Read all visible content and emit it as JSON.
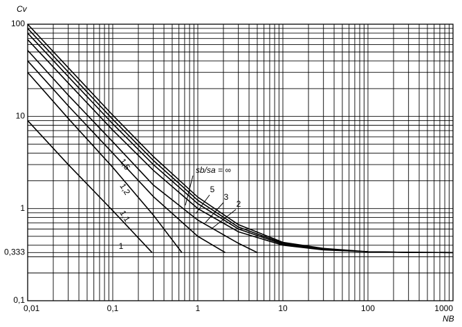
{
  "chart_data": {
    "type": "line",
    "x_label": "NB",
    "y_label": "Cv",
    "xlog": true,
    "ylog": true,
    "grid": true,
    "xlim": [
      0.01,
      1000
    ],
    "ylim": [
      0.1,
      100
    ],
    "xticks": [
      {
        "value": 0.01,
        "label": "0,01"
      },
      {
        "value": 0.1,
        "label": "0,1"
      },
      1,
      10,
      100,
      1000
    ],
    "yticks": [
      {
        "value": 0.1,
        "label": "0,1"
      },
      {
        "value": 0.333,
        "label": "0,333"
      },
      1,
      10,
      100
    ],
    "series": [
      {
        "name": "1",
        "color": "#000000",
        "x": [
          0.01,
          0.03,
          0.1,
          0.29
        ],
        "values": [
          9,
          3,
          0.95,
          0.333
        ]
      },
      {
        "name": "1,1",
        "color": "#000000",
        "x": [
          0.01,
          0.03,
          0.1,
          0.3,
          0.65
        ],
        "values": [
          30,
          9.5,
          2.8,
          0.85,
          0.333
        ]
      },
      {
        "name": "1,2",
        "color": "#000000",
        "x": [
          0.01,
          0.03,
          0.1,
          0.3,
          1,
          2.1
        ],
        "values": [
          40,
          13,
          4.0,
          1.35,
          0.5,
          0.333
        ]
      },
      {
        "name": "1,5",
        "color": "#000000",
        "x": [
          0.01,
          0.03,
          0.1,
          0.3,
          1,
          3,
          5
        ],
        "values": [
          52,
          17,
          5.3,
          1.8,
          0.75,
          0.42,
          0.333
        ]
      },
      {
        "name": "2",
        "color": "#000000",
        "x": [
          0.01,
          0.03,
          0.1,
          0.3,
          1,
          3,
          10,
          30,
          100,
          300,
          1000
        ],
        "values": [
          68,
          23,
          7.1,
          2.6,
          1.0,
          0.56,
          0.4,
          0.356,
          0.34,
          0.335,
          0.333
        ]
      },
      {
        "name": "3",
        "color": "#000000",
        "x": [
          0.01,
          0.03,
          0.1,
          0.3,
          1,
          3,
          10,
          30,
          100,
          300,
          1000
        ],
        "values": [
          80,
          27,
          8.3,
          3.0,
          1.13,
          0.6,
          0.41,
          0.36,
          0.34,
          0.335,
          0.333
        ]
      },
      {
        "name": "5",
        "color": "#000000",
        "x": [
          0.01,
          0.03,
          0.1,
          0.3,
          1,
          3,
          10,
          30,
          100,
          300,
          1000
        ],
        "values": [
          90,
          30.3,
          9.3,
          3.33,
          1.23,
          0.63,
          0.42,
          0.36,
          0.34,
          0.335,
          0.333
        ]
      },
      {
        "name": "sb/sa = ∞",
        "color": "#000000",
        "x": [
          0.01,
          0.03,
          0.1,
          0.3,
          1,
          3,
          10,
          30,
          100,
          300,
          1000
        ],
        "values": [
          100,
          33.7,
          10.3,
          3.67,
          1.33,
          0.67,
          0.43,
          0.37,
          0.34,
          0.335,
          0.333
        ]
      }
    ]
  }
}
